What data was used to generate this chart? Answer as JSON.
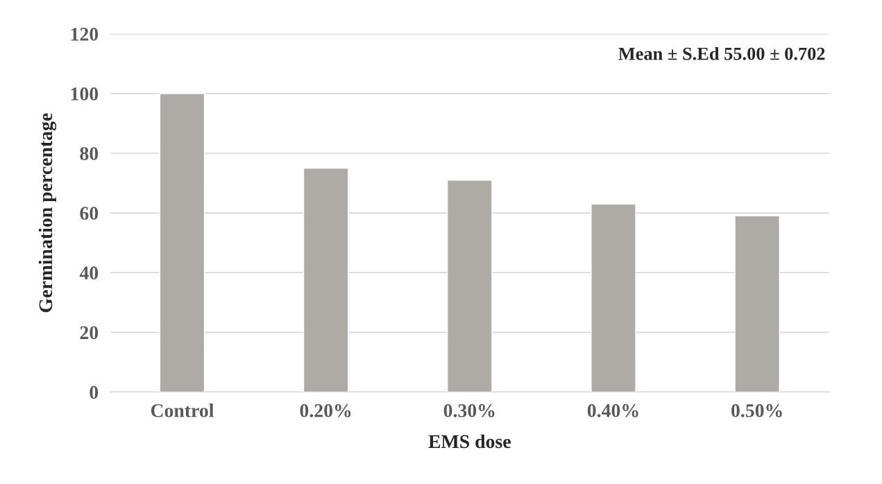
{
  "chart_data": {
    "type": "bar",
    "xlabel": "EMS dose",
    "ylabel": "Germination percentage",
    "categories": [
      "Control",
      "0.20%",
      "0.30%",
      "0.40%",
      "0.50%"
    ],
    "values": [
      100,
      75,
      71,
      63,
      59
    ],
    "color": "#aeaaa6",
    "ylim": [
      0,
      120
    ],
    "yticks": [
      0,
      20,
      40,
      60,
      80,
      100,
      120
    ],
    "grid": "y",
    "legend": false,
    "annotations": [
      "Mean ± S.Ed 55.00 ± 0.702"
    ]
  }
}
